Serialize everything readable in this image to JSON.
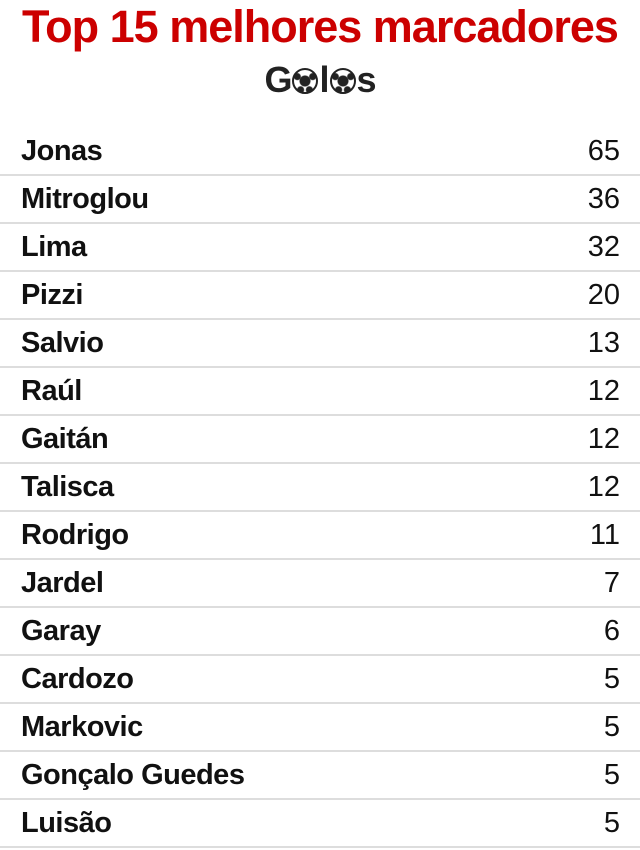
{
  "header": {
    "title": "Top 15 melhores marcadores",
    "subtitle": "Golos",
    "title_color": "#cc0000",
    "subtitle_icon": "soccer-ball-icon"
  },
  "scorers": [
    {
      "name": "Jonas",
      "goals": "65"
    },
    {
      "name": "Mitroglou",
      "goals": "36"
    },
    {
      "name": "Lima",
      "goals": "32"
    },
    {
      "name": "Pizzi",
      "goals": "20"
    },
    {
      "name": "Salvio",
      "goals": "13"
    },
    {
      "name": "Raúl",
      "goals": "12"
    },
    {
      "name": "Gaitán",
      "goals": "12"
    },
    {
      "name": "Talisca",
      "goals": "12"
    },
    {
      "name": "Rodrigo",
      "goals": "11"
    },
    {
      "name": "Jardel",
      "goals": "7"
    },
    {
      "name": "Garay",
      "goals": "6"
    },
    {
      "name": "Cardozo",
      "goals": "5"
    },
    {
      "name": "Markovic",
      "goals": "5"
    },
    {
      "name": "Gonçalo Guedes",
      "goals": "5"
    },
    {
      "name": "Luisão",
      "goals": "5"
    }
  ]
}
